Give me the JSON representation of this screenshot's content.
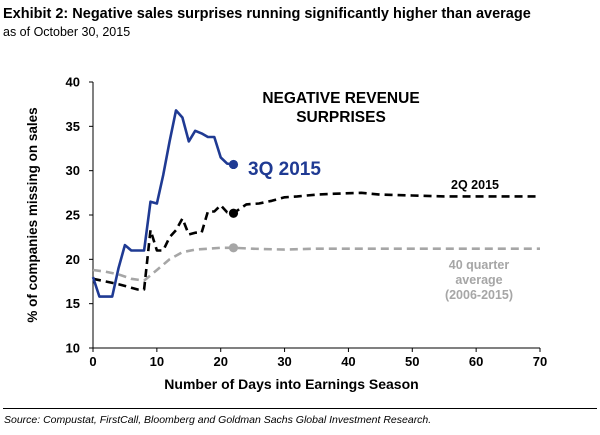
{
  "header": {
    "title": "Exhibit 2: Negative sales surprises running significantly higher than average",
    "subtitle": "as of October 30, 2015"
  },
  "footer": {
    "source": "Source: Compustat, FirstCall, Bloomberg  and Goldman Sachs Global Investment Research."
  },
  "chart_data": {
    "type": "line",
    "title_lines": [
      "NEGATIVE REVENUE",
      "SURPRISES"
    ],
    "xlabel": "Number of Days into Earnings Season",
    "ylabel": "% of companies missing  on sales",
    "xlim": [
      0,
      70
    ],
    "ylim": [
      10,
      40
    ],
    "xticks": [
      0,
      10,
      20,
      30,
      40,
      50,
      60,
      70
    ],
    "yticks": [
      10,
      15,
      20,
      25,
      30,
      35,
      40
    ],
    "grid": false,
    "series": [
      {
        "name": "3Q 2015",
        "color": "#1f3a93",
        "style": "solid",
        "label_lines": [
          "3Q 2015"
        ],
        "end_marker": true,
        "x": [
          0,
          1,
          2,
          3,
          4,
          5,
          6,
          7,
          8,
          9,
          10,
          11,
          12,
          13,
          14,
          15,
          16,
          17,
          18,
          19,
          20,
          21,
          22
        ],
        "y": [
          18,
          15.8,
          15.8,
          15.8,
          19,
          21.6,
          21,
          21,
          21,
          26.5,
          26.3,
          29.5,
          33.3,
          36.8,
          36,
          33.3,
          34.5,
          34.2,
          33.8,
          33.8,
          31.5,
          30.8,
          30.7
        ]
      },
      {
        "name": "2Q 2015",
        "color": "#000000",
        "style": "dashed",
        "label_lines": [
          "2Q 2015"
        ],
        "end_marker": true,
        "marker_x": 22,
        "x": [
          0,
          2,
          4,
          6,
          7,
          8,
          9,
          10,
          11,
          12,
          13,
          14,
          15,
          16,
          17,
          18,
          19,
          20,
          21,
          22,
          24,
          26,
          28,
          30,
          32,
          35,
          38,
          42,
          45,
          50,
          55,
          60,
          65,
          70
        ],
        "y": [
          17.8,
          17.5,
          17.2,
          16.8,
          16.6,
          16.6,
          23.3,
          21,
          21,
          22.5,
          23.3,
          24.6,
          22.8,
          23,
          23,
          25.4,
          25.4,
          26.1,
          25.3,
          25.2,
          26.2,
          26.3,
          26.6,
          27,
          27.1,
          27.3,
          27.4,
          27.5,
          27.3,
          27.2,
          27.1,
          27.1,
          27.1,
          27.1
        ]
      },
      {
        "name": "40 quarter average (2006-2015)",
        "color": "#a6a6a6",
        "style": "dashed",
        "label_lines": [
          "40 quarter",
          "average",
          "(2006-2015)"
        ],
        "end_marker": true,
        "marker_x": 22,
        "x": [
          0,
          2,
          4,
          6,
          8,
          10,
          12,
          14,
          16,
          18,
          20,
          22,
          25,
          30,
          35,
          40,
          45,
          50,
          55,
          60,
          65,
          70
        ],
        "y": [
          18.8,
          18.6,
          18.3,
          17.8,
          17.6,
          18.8,
          20,
          20.8,
          21.1,
          21.2,
          21.3,
          21.3,
          21.2,
          21.1,
          21.2,
          21.2,
          21.2,
          21.2,
          21.2,
          21.2,
          21.2,
          21.2
        ]
      }
    ]
  }
}
